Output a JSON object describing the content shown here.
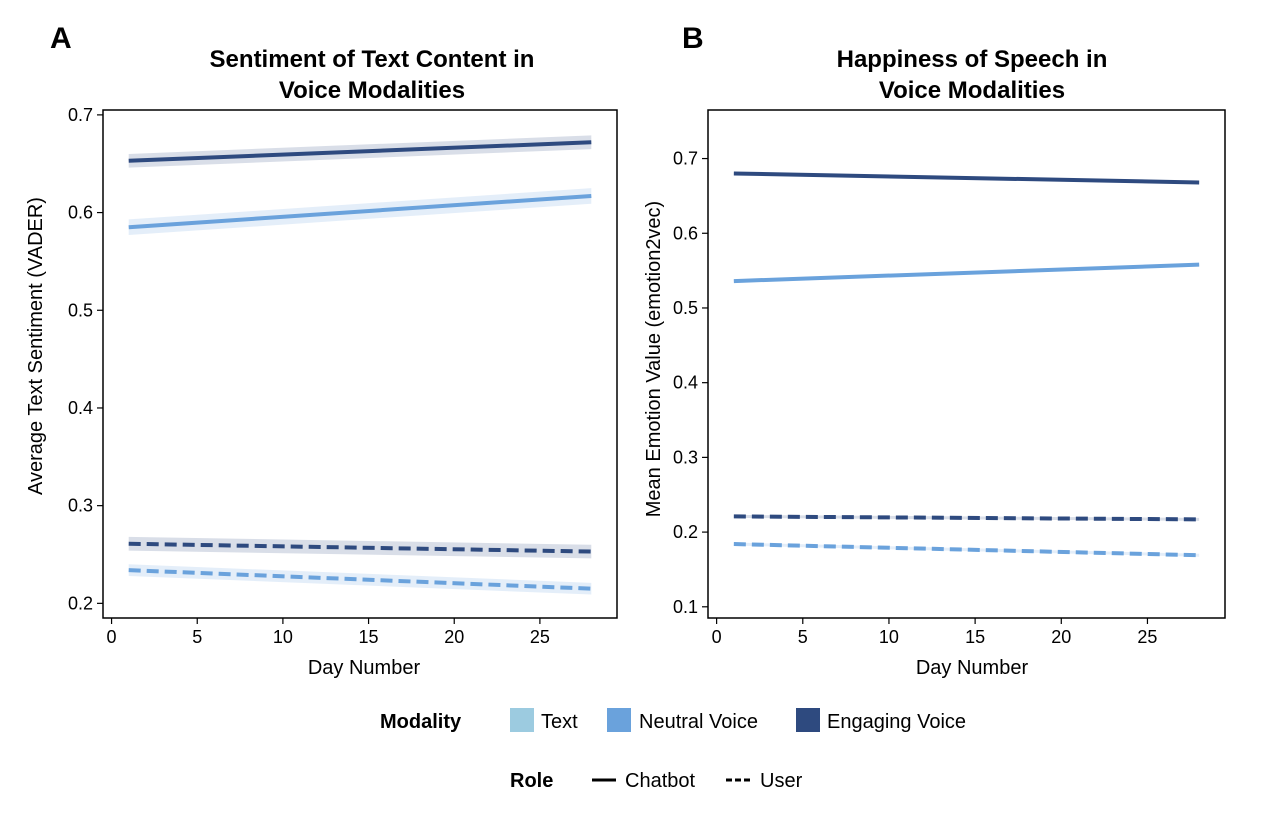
{
  "colors": {
    "text": "#9ccbe0",
    "neutral": "#6aa2dc",
    "engaging": "#2e4a7f"
  },
  "chart_data": [
    {
      "type": "line",
      "panel": "A",
      "title_lines": [
        "Sentiment of Text Content in",
        "Voice Modalities"
      ],
      "xlabel": "Day Number",
      "ylabel": "Average Text Sentiment (VADER)",
      "xlim": [
        -0.5,
        29.5
      ],
      "ylim": [
        0.185,
        0.705
      ],
      "xticks": [
        0,
        5,
        10,
        15,
        20,
        25
      ],
      "xtick_labels": [
        "0",
        "5",
        "10",
        "15",
        "20",
        "25"
      ],
      "yticks": [
        0.2,
        0.3,
        0.4,
        0.5,
        0.6,
        0.7
      ],
      "ytick_labels": [
        "0.2",
        "0.3",
        "0.4",
        "0.5",
        "0.6",
        "0.7"
      ],
      "series": [
        {
          "name": "Engaging Voice - Chatbot",
          "modality": "engaging",
          "role": "chatbot",
          "x": [
            1,
            28
          ],
          "y": [
            0.653,
            0.672
          ],
          "ci": 0.007
        },
        {
          "name": "Neutral Voice - Chatbot",
          "modality": "neutral",
          "role": "chatbot",
          "x": [
            1,
            28
          ],
          "y": [
            0.585,
            0.617
          ],
          "ci": 0.008
        },
        {
          "name": "Engaging Voice - User",
          "modality": "engaging",
          "role": "user",
          "x": [
            1,
            28
          ],
          "y": [
            0.261,
            0.253
          ],
          "ci": 0.007
        },
        {
          "name": "Neutral Voice - User",
          "modality": "neutral",
          "role": "user",
          "x": [
            1,
            28
          ],
          "y": [
            0.234,
            0.215
          ],
          "ci": 0.006
        }
      ]
    },
    {
      "type": "line",
      "panel": "B",
      "title_lines": [
        "Happiness of Speech in",
        "Voice Modalities"
      ],
      "xlabel": "Day Number",
      "ylabel": "Mean Emotion Value (emotion2vec)",
      "xlim": [
        -0.5,
        29.5
      ],
      "ylim": [
        0.085,
        0.765
      ],
      "xticks": [
        0,
        5,
        10,
        15,
        20,
        25
      ],
      "xtick_labels": [
        "0",
        "5",
        "10",
        "15",
        "20",
        "25"
      ],
      "yticks": [
        0.1,
        0.2,
        0.3,
        0.4,
        0.5,
        0.6,
        0.7
      ],
      "ytick_labels": [
        "0.1",
        "0.2",
        "0.3",
        "0.4",
        "0.5",
        "0.6",
        "0.7"
      ],
      "series": [
        {
          "name": "Engaging Voice - Chatbot",
          "modality": "engaging",
          "role": "chatbot",
          "x": [
            1,
            28
          ],
          "y": [
            0.68,
            0.668
          ],
          "ci": 0.002
        },
        {
          "name": "Neutral Voice - Chatbot",
          "modality": "neutral",
          "role": "chatbot",
          "x": [
            1,
            28
          ],
          "y": [
            0.536,
            0.558
          ],
          "ci": 0.002
        },
        {
          "name": "Engaging Voice - User",
          "modality": "engaging",
          "role": "user",
          "x": [
            1,
            28
          ],
          "y": [
            0.221,
            0.217
          ],
          "ci": 0.002
        },
        {
          "name": "Neutral Voice - User",
          "modality": "neutral",
          "role": "user",
          "x": [
            1,
            28
          ],
          "y": [
            0.184,
            0.169
          ],
          "ci": 0.002
        }
      ]
    }
  ],
  "legend": {
    "modality_title": "Modality",
    "modality_items": [
      {
        "label": "Text",
        "key": "text"
      },
      {
        "label": "Neutral Voice",
        "key": "neutral"
      },
      {
        "label": "Engaging Voice",
        "key": "engaging"
      }
    ],
    "role_title": "Role",
    "role_items": [
      {
        "label": "Chatbot",
        "style": "solid"
      },
      {
        "label": "User",
        "style": "dashed"
      }
    ]
  }
}
